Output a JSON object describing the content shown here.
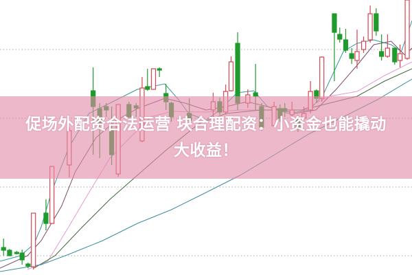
{
  "headline": {
    "line1": "促场外配资合法运营 块合理配资：小资金也能撬动",
    "line2": "大收益！"
  },
  "colors": {
    "up": "#d9434f",
    "down": "#1f9a2c",
    "grid": "#b8b8b8",
    "banner": "#e28ca8"
  },
  "chart_data": {
    "type": "candlestick",
    "xlim": [
      0,
      69
    ],
    "ylim": [
      7.2,
      47.2
    ],
    "grid": true,
    "gridlines_y": [
      10,
      20,
      30,
      40
    ],
    "candles_fields": [
      "index",
      "open",
      "close",
      "high",
      "low"
    ],
    "candles": [
      [
        0.6,
        11.2,
        10.8,
        12.5,
        10.0
      ],
      [
        1.6,
        10.8,
        10.0,
        11.0,
        10.0
      ],
      [
        2.8,
        10.5,
        10.3,
        10.7,
        10.2
      ],
      [
        3.7,
        10.4,
        9.4,
        10.9,
        8.7
      ],
      [
        4.7,
        8.8,
        8.5,
        9.0,
        8.2
      ],
      [
        5.6,
        8.4,
        16.2,
        16.2,
        8.0
      ],
      [
        7.7,
        16.2,
        14.7,
        18.2,
        13.7
      ],
      [
        8.7,
        14.7,
        23.0,
        23.0,
        14.7
      ],
      [
        11.6,
        23.2,
        28.2,
        28.7,
        21.4
      ],
      [
        15.6,
        34.0,
        31.7,
        37.4,
        24.7
      ],
      [
        16.7,
        31.4,
        29.2,
        32.2,
        24.2
      ],
      [
        17.8,
        31.7,
        31.2,
        32.2,
        30.2
      ],
      [
        18.7,
        28.2,
        24.7,
        31.7,
        23.2
      ],
      [
        19.8,
        21.9,
        32.0,
        32.0,
        21.5
      ],
      [
        21.6,
        32.0,
        30.2,
        32.4,
        30.0
      ],
      [
        22.8,
        31.8,
        31.5,
        32.2,
        30.2
      ],
      [
        23.8,
        26.7,
        34.4,
        36.0,
        26.5
      ],
      [
        24.7,
        34.6,
        34.2,
        37.2,
        34.0
      ],
      [
        25.7,
        34.2,
        37.2,
        37.2,
        34.2
      ],
      [
        26.7,
        37.2,
        37.0,
        37.4,
        36.0
      ],
      [
        27.8,
        33.6,
        32.4,
        35.0,
        31.2
      ],
      [
        28.7,
        32.2,
        30.2,
        32.4,
        29.5
      ],
      [
        31.7,
        30.7,
        29.7,
        32.9,
        29.0
      ],
      [
        35.7,
        31.2,
        32.4,
        33.7,
        30.2
      ],
      [
        36.8,
        32.4,
        30.9,
        33.0,
        30.5
      ],
      [
        37.8,
        30.9,
        33.9,
        34.9,
        30.5
      ],
      [
        38.7,
        34.0,
        38.2,
        39.0,
        33.9
      ],
      [
        39.8,
        40.9,
        32.2,
        42.5,
        31.2
      ],
      [
        41.5,
        32.2,
        33.4,
        34.2,
        31.5
      ],
      [
        42.8,
        33.7,
        33.2,
        37.9,
        31.2
      ],
      [
        43.8,
        31.7,
        28.7,
        32.2,
        28.2
      ],
      [
        45.9,
        28.9,
        31.7,
        32.4,
        28.7
      ],
      [
        46.9,
        31.4,
        30.0,
        32.0,
        29.5
      ],
      [
        47.7,
        31.4,
        31.0,
        32.2,
        30.2
      ],
      [
        48.9,
        30.5,
        31.2,
        32.4,
        30.0
      ],
      [
        49.9,
        30.0,
        28.7,
        30.5,
        28.0
      ],
      [
        50.9,
        30.0,
        30.7,
        31.7,
        29.8
      ],
      [
        52.0,
        31.2,
        33.9,
        35.4,
        30.7
      ],
      [
        53.0,
        34.0,
        32.9,
        34.2,
        32.2
      ],
      [
        53.9,
        32.9,
        38.9,
        39.0,
        32.4
      ],
      [
        56.0,
        45.2,
        42.5,
        45.2,
        35.4
      ],
      [
        56.9,
        42.2,
        41.5,
        43.2,
        41.0
      ],
      [
        57.9,
        41.4,
        39.9,
        43.0,
        39.5
      ],
      [
        58.9,
        39.4,
        38.7,
        40.2,
        37.9
      ],
      [
        59.8,
        38.4,
        39.7,
        42.9,
        37.2
      ],
      [
        60.9,
        40.0,
        41.2,
        41.9,
        39.5
      ],
      [
        62.0,
        41.4,
        45.2,
        46.4,
        41.0
      ],
      [
        63.0,
        45.2,
        42.7,
        46.0,
        42.0
      ],
      [
        63.9,
        39.7,
        39.0,
        42.2,
        38.4
      ],
      [
        64.9,
        39.0,
        40.2,
        42.2,
        38.8
      ],
      [
        66.1,
        40.2,
        38.2,
        40.2,
        37.8
      ],
      [
        67.0,
        38.4,
        39.4,
        40.7,
        37.4
      ],
      [
        68.2,
        38.7,
        47.2,
        47.2,
        38.5
      ]
    ],
    "moving_averages": [
      {
        "color": "#2f9a9a",
        "points": [
          [
            0,
            9.2
          ],
          [
            3.4,
            10.0
          ],
          [
            5.7,
            11.7
          ],
          [
            6.9,
            14.2
          ],
          [
            8.6,
            19.2
          ],
          [
            11.5,
            25.7
          ],
          [
            14.9,
            30.7
          ],
          [
            18.4,
            32.2
          ],
          [
            23,
            34.2
          ],
          [
            27.6,
            35.0
          ],
          [
            29.9,
            32.7
          ],
          [
            31.6,
            30.7
          ],
          [
            34.5,
            29.7
          ],
          [
            36.8,
            31.2
          ],
          [
            39.7,
            33.7
          ],
          [
            42.5,
            34.0
          ],
          [
            44.8,
            31.7
          ],
          [
            48.3,
            30.7
          ],
          [
            51.7,
            31.2
          ],
          [
            54,
            33.2
          ],
          [
            57.5,
            39.7
          ],
          [
            59.8,
            40.9
          ],
          [
            62.6,
            41.4
          ],
          [
            65.5,
            40.7
          ],
          [
            67.2,
            39.7
          ],
          [
            69,
            44.2
          ]
        ]
      },
      {
        "color": "#7a4a6a",
        "points": [
          [
            0,
            8.2
          ],
          [
            4.6,
            10.0
          ],
          [
            6.9,
            12.2
          ],
          [
            10.3,
            17.2
          ],
          [
            12.6,
            22.2
          ],
          [
            16.1,
            27.2
          ],
          [
            19.5,
            29.7
          ],
          [
            23,
            31.4
          ],
          [
            27.6,
            32.9
          ],
          [
            31,
            32.2
          ],
          [
            34.5,
            31.2
          ],
          [
            37.9,
            31.7
          ],
          [
            41.4,
            32.4
          ],
          [
            44.8,
            31.7
          ],
          [
            49.4,
            30.7
          ],
          [
            52.9,
            31.2
          ],
          [
            56.3,
            34.2
          ],
          [
            59.8,
            37.7
          ],
          [
            62.6,
            40.7
          ],
          [
            65.5,
            41.2
          ],
          [
            67.8,
            39.2
          ],
          [
            69,
            40.2
          ]
        ]
      },
      {
        "color": "#e59ad0",
        "points": [
          [
            4.6,
            8.0
          ],
          [
            8,
            9.2
          ],
          [
            11.5,
            14.2
          ],
          [
            14.9,
            19.2
          ],
          [
            18.4,
            24.2
          ],
          [
            21.8,
            27.2
          ],
          [
            25.3,
            30.2
          ],
          [
            28.7,
            31.0
          ],
          [
            34.5,
            30.9
          ],
          [
            40.2,
            31.2
          ],
          [
            46,
            31.2
          ],
          [
            50.6,
            31.2
          ],
          [
            55.2,
            33.2
          ],
          [
            59.8,
            33.9
          ],
          [
            64.4,
            36.2
          ],
          [
            69,
            38.2
          ]
        ]
      },
      {
        "color": "#3f6a3a",
        "points": [
          [
            5.7,
            8.2
          ],
          [
            9.2,
            10.0
          ],
          [
            13.8,
            14.2
          ],
          [
            18.4,
            18.2
          ],
          [
            23,
            21.7
          ],
          [
            27.6,
            25.2
          ],
          [
            33.3,
            29.2
          ],
          [
            37.9,
            30.7
          ],
          [
            43.7,
            31.2
          ],
          [
            50.6,
            31.2
          ],
          [
            55.2,
            32.2
          ],
          [
            59.8,
            33.2
          ],
          [
            64.4,
            35.4
          ],
          [
            69,
            37.2
          ]
        ]
      },
      {
        "color": "#3a8ea0",
        "points": [
          [
            0,
            7.7
          ],
          [
            6.9,
            8.7
          ],
          [
            11.5,
            10.2
          ],
          [
            17.2,
            12.2
          ],
          [
            23,
            14.7
          ],
          [
            28.7,
            16.7
          ],
          [
            34.5,
            19.2
          ],
          [
            40.2,
            21.7
          ],
          [
            46,
            24.7
          ],
          [
            51.7,
            27.7
          ],
          [
            57.5,
            30.2
          ],
          [
            63.2,
            32.7
          ],
          [
            69,
            35.7
          ]
        ]
      }
    ]
  }
}
